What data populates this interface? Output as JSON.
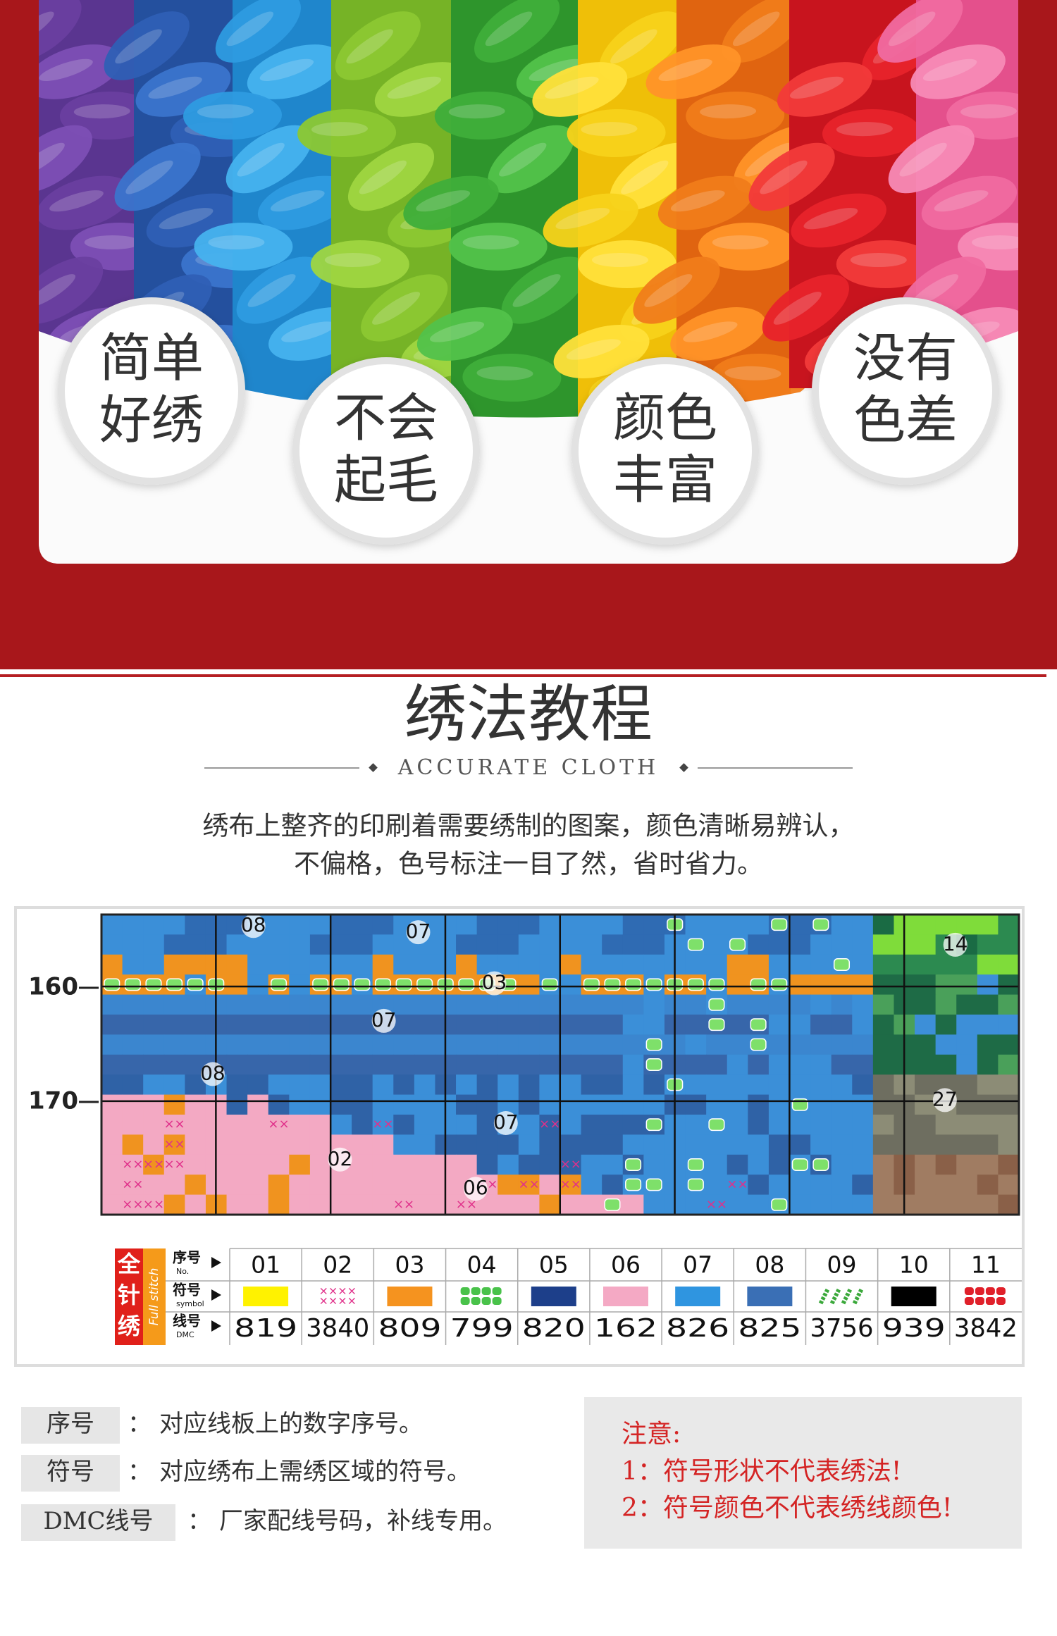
{
  "hero": {
    "badges": [
      [
        "简单",
        "好绣"
      ],
      [
        "不会",
        "起毛"
      ],
      [
        "颜色",
        "丰富"
      ],
      [
        "没有",
        "色差"
      ]
    ]
  },
  "section": {
    "title": "绣法教程",
    "subtitle": "ACCURATE CLOTH",
    "description": [
      "绣布上整齐的印刷着需要绣制的图案，颜色清晰易辨认，",
      "不偏格，色号标注一目了然，省时省力。"
    ]
  },
  "pattern": {
    "row_labels": [
      "160",
      "170"
    ],
    "region_labels": [
      "08",
      "07",
      "03",
      "07",
      "08",
      "02",
      "07",
      "06",
      "14",
      "27"
    ]
  },
  "legend": {
    "stitch": "全针绣",
    "stitch_en": "Full stitch",
    "rows": [
      {
        "label": "序号",
        "sub": "No."
      },
      {
        "label": "符号",
        "sub": "symbol"
      },
      {
        "label": "线号",
        "sub": "DMC"
      }
    ],
    "numbers": [
      "01",
      "02",
      "03",
      "04",
      "05",
      "06",
      "07",
      "08",
      "09",
      "10",
      "11"
    ],
    "dmc": [
      "819",
      "3840",
      "809",
      "799",
      "820",
      "162",
      "826",
      "825",
      "3756",
      "939",
      "3842"
    ]
  },
  "notes": {
    "items": [
      {
        "term": "序号",
        "sep": "：",
        "text": "对应线板上的数字序号。"
      },
      {
        "term": "符号",
        "sep": "：",
        "text": "对应绣布上需绣区域的符号。"
      },
      {
        "term": "DMC线号",
        "sep": "：",
        "text": "厂家配线号码，补线专用。"
      }
    ],
    "warning": {
      "title": "注意:",
      "lines": [
        "1：符号形状不代表绣法!",
        "2：符号颜色不代表绣线颜色!"
      ]
    }
  }
}
